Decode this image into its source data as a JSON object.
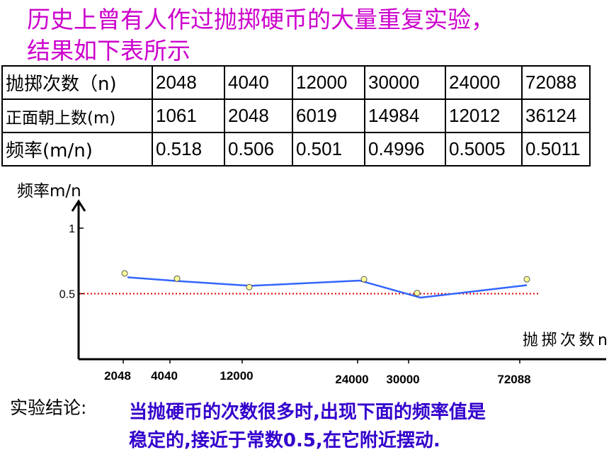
{
  "title": {
    "line1": "历史上曾有人作过抛掷硬币的大量重复实验，",
    "line2": "结果如下表所示"
  },
  "table": {
    "rows": [
      {
        "label": "抛掷次数（n)",
        "values": [
          "2048",
          "4040",
          "12000",
          "30000",
          "24000",
          "72088"
        ]
      },
      {
        "label": "正面朝上数(m)",
        "values": [
          "1061",
          "2048",
          "6019",
          "14984",
          "12012",
          "36124"
        ]
      },
      {
        "label": "频率(m/n)",
        "values": [
          "0.518",
          "0.506",
          "0.501",
          "0.4996",
          "0.5005",
          "0.5011"
        ]
      }
    ]
  },
  "chart_data": {
    "type": "line",
    "ylabel": "频率m/n",
    "xlabel": "抛掷次数n",
    "ylim": [
      0,
      1.12
    ],
    "yticks": [
      {
        "label": "1",
        "value": 1
      },
      {
        "label": "0.5",
        "value": 0.5
      }
    ],
    "reference_line": {
      "value": 0.5,
      "color": "#e00000",
      "style": "dotted"
    },
    "x_tick_labels": [
      "2048",
      "4040",
      "12000",
      "24000",
      "30000",
      "72088"
    ],
    "line_series": {
      "color": "#3366ff",
      "values": [
        0.625,
        0.595,
        0.56,
        0.6,
        0.47,
        0.565
      ]
    },
    "markers": {
      "color": "#ffff99",
      "values": [
        0.655,
        0.615,
        0.55,
        0.61,
        0.505,
        0.61
      ]
    }
  },
  "conclusion": {
    "label": "实验结论:",
    "line1": "当抛硬币的次数很多时,出现下面的频率值是",
    "line2": "稳定的,接近于常数0.5,在它附近摆动."
  }
}
